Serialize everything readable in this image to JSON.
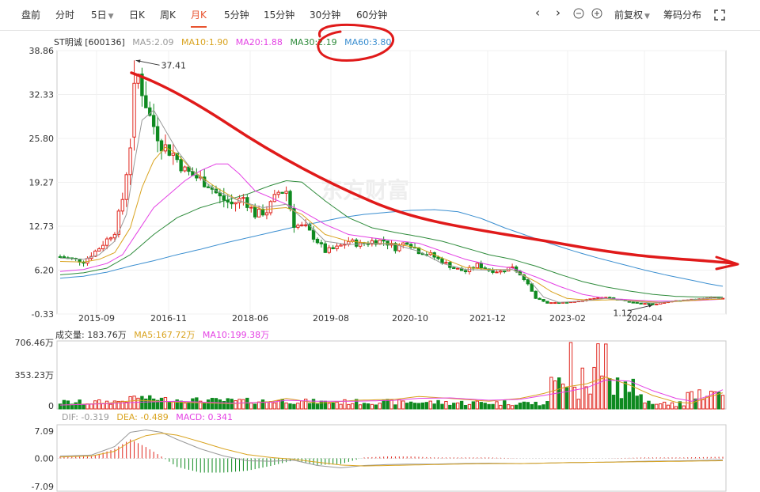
{
  "toolbar": {
    "tabs": [
      "盘前",
      "分时",
      "5日",
      "日K",
      "周K",
      "月K",
      "5分钟",
      "15分钟",
      "30分钟",
      "60分钟"
    ],
    "active_tab": "月K",
    "adjust_label": "前复权",
    "chip_label": "筹码分布"
  },
  "legend": {
    "stock": "ST明诚 [600136]",
    "ma5": "MA5:2.09",
    "ma10": "MA10:1.90",
    "ma20": "MA20:1.88",
    "ma30": "MA30:2.19",
    "ma60": "MA60:3.80"
  },
  "colors": {
    "up": "#e0271f",
    "down": "#0f8a20",
    "ma5": "#999999",
    "ma10": "#d9a31f",
    "ma20": "#e441e4",
    "ma30": "#2e8b3b",
    "ma60": "#3a8ed0",
    "annotation": "#e01a1a"
  },
  "watermark": "东方财富",
  "volume": {
    "label": "成交量: 183.76万",
    "ma5": "MA5:167.72万",
    "ma10": "MA10:199.38万",
    "yticks": [
      "706.46万",
      "353.23万",
      "0"
    ]
  },
  "macd": {
    "dif": "DIF: -0.319",
    "dea": "DEA: -0.489",
    "macd": "MACD: 0.341",
    "yticks": [
      "7.09",
      "0.00",
      "-7.09"
    ]
  },
  "chart_data": {
    "type": "candlestick",
    "price_axis": {
      "ticks": [
        "38.86",
        "32.33",
        "25.80",
        "19.27",
        "12.73",
        "6.20",
        "-0.33"
      ],
      "ylim": [
        -0.33,
        38.86
      ]
    },
    "x_ticks": [
      "2015-09",
      "2016-11",
      "2018-06",
      "2019-08",
      "2020-10",
      "2021-12",
      "2023-02",
      "2024-04"
    ],
    "annotations": [
      {
        "label": "37.41",
        "kind": "max"
      },
      {
        "label": "1.12",
        "kind": "min"
      }
    ],
    "close_path": [
      [
        0,
        8.2
      ],
      [
        6,
        7.5
      ],
      [
        10,
        9.5
      ],
      [
        14,
        12.0
      ],
      [
        16,
        16.8
      ],
      [
        18,
        24.9
      ],
      [
        19,
        37.41
      ],
      [
        21,
        33.0
      ],
      [
        23,
        29.0
      ],
      [
        26,
        25.0
      ],
      [
        29,
        23.5
      ],
      [
        32,
        21.0
      ],
      [
        35,
        20.0
      ],
      [
        38,
        19.0
      ],
      [
        41,
        17.0
      ],
      [
        44,
        16.0
      ],
      [
        47,
        17.0
      ],
      [
        50,
        14.5
      ],
      [
        53,
        15.0
      ],
      [
        56,
        17.8
      ],
      [
        58,
        18.0
      ],
      [
        60,
        13.0
      ],
      [
        63,
        12.5
      ],
      [
        66,
        10.5
      ],
      [
        68,
        9.0
      ],
      [
        71,
        9.5
      ],
      [
        74,
        10.5
      ],
      [
        77,
        10.0
      ],
      [
        80,
        10.5
      ],
      [
        83,
        10.6
      ],
      [
        86,
        9.5
      ],
      [
        89,
        10.5
      ],
      [
        92,
        9.0
      ],
      [
        95,
        8.5
      ],
      [
        98,
        7.5
      ],
      [
        101,
        6.5
      ],
      [
        104,
        6.0
      ],
      [
        107,
        7.0
      ],
      [
        110,
        6.2
      ],
      [
        113,
        6.0
      ],
      [
        116,
        6.8
      ],
      [
        119,
        5.0
      ],
      [
        122,
        2.0
      ],
      [
        125,
        1.3
      ],
      [
        128,
        1.3
      ],
      [
        131,
        1.5
      ],
      [
        134,
        1.7
      ],
      [
        137,
        2.0
      ],
      [
        140,
        2.1
      ],
      [
        143,
        1.8
      ],
      [
        146,
        1.5
      ],
      [
        149,
        1.2
      ],
      [
        152,
        1.12
      ],
      [
        155,
        1.4
      ],
      [
        158,
        1.6
      ],
      [
        161,
        1.8
      ],
      [
        164,
        1.9
      ],
      [
        167,
        2.1
      ],
      [
        170,
        2.09
      ]
    ],
    "ma_paths": {
      "ma5": [
        [
          0,
          8
        ],
        [
          6,
          7.8
        ],
        [
          10,
          8.5
        ],
        [
          14,
          10.5
        ],
        [
          17,
          14.5
        ],
        [
          19,
          22
        ],
        [
          21,
          28.5
        ],
        [
          24,
          30.0
        ],
        [
          27,
          27.0
        ],
        [
          30,
          24.0
        ],
        [
          34,
          21
        ],
        [
          40,
          18
        ],
        [
          46,
          16.5
        ],
        [
          52,
          15.5
        ],
        [
          58,
          16.0
        ],
        [
          62,
          14.0
        ],
        [
          68,
          10.5
        ],
        [
          74,
          10.0
        ],
        [
          80,
          10.2
        ],
        [
          86,
          10.0
        ],
        [
          92,
          9.0
        ],
        [
          98,
          7.2
        ],
        [
          104,
          6.3
        ],
        [
          110,
          6.2
        ],
        [
          116,
          6.3
        ],
        [
          120,
          5.0
        ],
        [
          124,
          2.2
        ],
        [
          128,
          1.4
        ],
        [
          134,
          1.6
        ],
        [
          140,
          2.0
        ],
        [
          146,
          1.6
        ],
        [
          152,
          1.3
        ],
        [
          158,
          1.6
        ],
        [
          164,
          1.9
        ],
        [
          170,
          2.09
        ]
      ],
      "ma10": [
        [
          0,
          7.5
        ],
        [
          6,
          7.4
        ],
        [
          10,
          7.8
        ],
        [
          14,
          8.8
        ],
        [
          18,
          12.5
        ],
        [
          21,
          18.5
        ],
        [
          24,
          22.5
        ],
        [
          27,
          24.5
        ],
        [
          30,
          23.5
        ],
        [
          34,
          21.0
        ],
        [
          40,
          18.5
        ],
        [
          46,
          16.5
        ],
        [
          52,
          15.2
        ],
        [
          58,
          15.5
        ],
        [
          62,
          14.5
        ],
        [
          68,
          11.5
        ],
        [
          74,
          10.5
        ],
        [
          80,
          10.2
        ],
        [
          86,
          10.1
        ],
        [
          92,
          9.5
        ],
        [
          98,
          8.0
        ],
        [
          104,
          6.6
        ],
        [
          110,
          6.3
        ],
        [
          116,
          6.3
        ],
        [
          122,
          4.5
        ],
        [
          126,
          3.0
        ],
        [
          130,
          2.0
        ],
        [
          136,
          1.7
        ],
        [
          142,
          1.8
        ],
        [
          148,
          1.6
        ],
        [
          154,
          1.4
        ],
        [
          160,
          1.6
        ],
        [
          165,
          1.8
        ],
        [
          170,
          1.9
        ]
      ],
      "ma20": [
        [
          0,
          6.0
        ],
        [
          6,
          6.3
        ],
        [
          12,
          7.2
        ],
        [
          16,
          8.5
        ],
        [
          20,
          12.0
        ],
        [
          24,
          15.5
        ],
        [
          28,
          17.5
        ],
        [
          32,
          19.5
        ],
        [
          36,
          21.0
        ],
        [
          40,
          22.0
        ],
        [
          43,
          22.0
        ],
        [
          46,
          20.5
        ],
        [
          50,
          18.0
        ],
        [
          54,
          17.0
        ],
        [
          58,
          16.0
        ],
        [
          62,
          15.0
        ],
        [
          68,
          13.0
        ],
        [
          74,
          11.5
        ],
        [
          80,
          11.0
        ],
        [
          86,
          10.6
        ],
        [
          92,
          10.2
        ],
        [
          98,
          9.0
        ],
        [
          104,
          7.8
        ],
        [
          110,
          7.0
        ],
        [
          116,
          6.5
        ],
        [
          122,
          5.2
        ],
        [
          128,
          3.8
        ],
        [
          134,
          2.6
        ],
        [
          140,
          2.0
        ],
        [
          146,
          1.8
        ],
        [
          152,
          1.6
        ],
        [
          158,
          1.6
        ],
        [
          164,
          1.7
        ],
        [
          170,
          1.88
        ]
      ],
      "ma30": [
        [
          0,
          5.5
        ],
        [
          6,
          5.8
        ],
        [
          12,
          6.5
        ],
        [
          18,
          8.5
        ],
        [
          24,
          11.5
        ],
        [
          30,
          14.0
        ],
        [
          36,
          15.5
        ],
        [
          42,
          16.5
        ],
        [
          48,
          17.5
        ],
        [
          54,
          18.8
        ],
        [
          58,
          19.5
        ],
        [
          62,
          19.3
        ],
        [
          68,
          16.5
        ],
        [
          74,
          14.0
        ],
        [
          80,
          12.5
        ],
        [
          86,
          11.8
        ],
        [
          92,
          11.2
        ],
        [
          98,
          10.5
        ],
        [
          104,
          9.5
        ],
        [
          110,
          8.5
        ],
        [
          116,
          7.8
        ],
        [
          122,
          6.8
        ],
        [
          128,
          5.6
        ],
        [
          134,
          4.5
        ],
        [
          140,
          3.7
        ],
        [
          146,
          3.1
        ],
        [
          152,
          2.6
        ],
        [
          158,
          2.3
        ],
        [
          164,
          2.2
        ],
        [
          170,
          2.19
        ]
      ],
      "ma60": [
        [
          0,
          5.0
        ],
        [
          6,
          5.3
        ],
        [
          12,
          5.9
        ],
        [
          18,
          6.8
        ],
        [
          24,
          7.6
        ],
        [
          30,
          8.5
        ],
        [
          36,
          9.3
        ],
        [
          42,
          10.2
        ],
        [
          48,
          11.0
        ],
        [
          54,
          11.8
        ],
        [
          60,
          12.6
        ],
        [
          66,
          13.3
        ],
        [
          72,
          14.0
        ],
        [
          78,
          14.5
        ],
        [
          84,
          14.8
        ],
        [
          90,
          15.1
        ],
        [
          96,
          15.2
        ],
        [
          102,
          14.9
        ],
        [
          108,
          13.9
        ],
        [
          114,
          12.5
        ],
        [
          120,
          11.3
        ],
        [
          126,
          10.1
        ],
        [
          132,
          9.0
        ],
        [
          138,
          8.0
        ],
        [
          144,
          7.1
        ],
        [
          150,
          6.2
        ],
        [
          156,
          5.4
        ],
        [
          162,
          4.7
        ],
        [
          166,
          4.2
        ],
        [
          170,
          3.8
        ]
      ]
    },
    "volume_ma": {
      "ma5": [
        [
          0,
          40
        ],
        [
          12,
          60
        ],
        [
          20,
          90
        ],
        [
          30,
          70
        ],
        [
          44,
          55
        ],
        [
          54,
          75
        ],
        [
          58,
          110
        ],
        [
          66,
          60
        ],
        [
          76,
          90
        ],
        [
          86,
          100
        ],
        [
          92,
          130
        ],
        [
          100,
          110
        ],
        [
          110,
          80
        ],
        [
          118,
          110
        ],
        [
          124,
          160
        ],
        [
          130,
          230
        ],
        [
          135,
          260
        ],
        [
          140,
          330
        ],
        [
          146,
          250
        ],
        [
          152,
          140
        ],
        [
          158,
          70
        ],
        [
          162,
          60
        ],
        [
          166,
          120
        ],
        [
          170,
          167.72
        ]
      ],
      "ma10": [
        [
          0,
          40
        ],
        [
          12,
          55
        ],
        [
          20,
          70
        ],
        [
          30,
          80
        ],
        [
          44,
          60
        ],
        [
          54,
          70
        ],
        [
          58,
          90
        ],
        [
          66,
          80
        ],
        [
          76,
          80
        ],
        [
          86,
          90
        ],
        [
          92,
          110
        ],
        [
          100,
          115
        ],
        [
          110,
          90
        ],
        [
          118,
          100
        ],
        [
          124,
          140
        ],
        [
          130,
          180
        ],
        [
          135,
          220
        ],
        [
          140,
          300
        ],
        [
          146,
          290
        ],
        [
          152,
          190
        ],
        [
          158,
          110
        ],
        [
          162,
          80
        ],
        [
          166,
          130
        ],
        [
          170,
          199.38
        ]
      ]
    },
    "macd_lines": {
      "dif": [
        [
          0,
          0.5
        ],
        [
          8,
          0.7
        ],
        [
          14,
          2.5
        ],
        [
          18,
          5.5
        ],
        [
          22,
          6.0
        ],
        [
          26,
          5.5
        ],
        [
          30,
          4.0
        ],
        [
          36,
          2.0
        ],
        [
          42,
          0.5
        ],
        [
          48,
          -0.5
        ],
        [
          54,
          -0.6
        ],
        [
          60,
          -0.4
        ],
        [
          66,
          -1.5
        ],
        [
          72,
          -2.0
        ],
        [
          78,
          -1.5
        ],
        [
          84,
          -1.3
        ],
        [
          90,
          -1.2
        ],
        [
          96,
          -1.2
        ],
        [
          102,
          -1.1
        ],
        [
          110,
          -1.0
        ],
        [
          118,
          -1.1
        ],
        [
          124,
          -1.0
        ],
        [
          130,
          -0.9
        ],
        [
          140,
          -0.8
        ],
        [
          150,
          -0.6
        ],
        [
          160,
          -0.5
        ],
        [
          170,
          -0.319
        ]
      ],
      "dea": [
        [
          0,
          0.3
        ],
        [
          8,
          0.5
        ],
        [
          14,
          1.5
        ],
        [
          18,
          3.5
        ],
        [
          22,
          4.8
        ],
        [
          26,
          5.3
        ],
        [
          30,
          4.9
        ],
        [
          36,
          3.5
        ],
        [
          42,
          2.0
        ],
        [
          48,
          0.8
        ],
        [
          54,
          0.2
        ],
        [
          60,
          -0.2
        ],
        [
          66,
          -0.8
        ],
        [
          72,
          -1.4
        ],
        [
          78,
          -1.6
        ],
        [
          84,
          -1.5
        ],
        [
          90,
          -1.4
        ],
        [
          96,
          -1.3
        ],
        [
          102,
          -1.2
        ],
        [
          110,
          -1.1
        ],
        [
          118,
          -1.1
        ],
        [
          124,
          -1.0
        ],
        [
          130,
          -0.9
        ],
        [
          140,
          -0.8
        ],
        [
          150,
          -0.7
        ],
        [
          160,
          -0.6
        ],
        [
          170,
          -0.489
        ]
      ]
    }
  }
}
